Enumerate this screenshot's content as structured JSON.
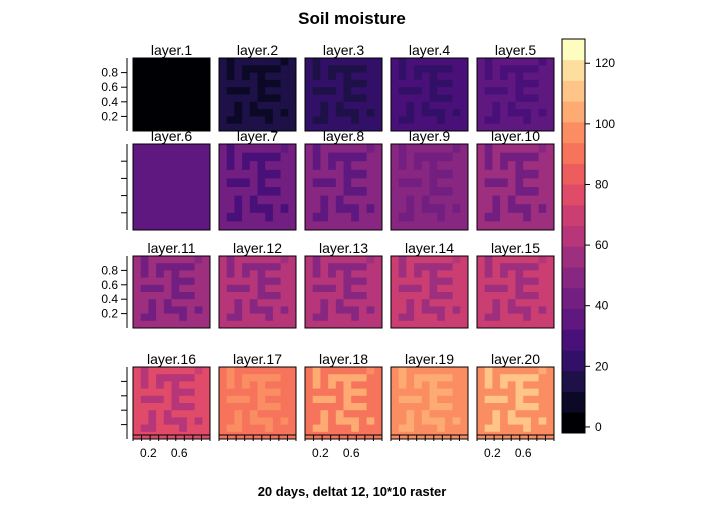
{
  "chart_data": {
    "type": "heatmap",
    "title": "Soil moisture",
    "xlabel": "20 days, deltat 12, 10*10 raster",
    "ylabel": "",
    "grid": false,
    "layout": {
      "rows": 4,
      "cols": 5
    },
    "raster_size": [
      10,
      10
    ],
    "panel_titles": [
      "layer.1",
      "layer.2",
      "layer.3",
      "layer.4",
      "layer.5",
      "layer.6",
      "layer.7",
      "layer.8",
      "layer.9",
      "layer.10",
      "layer.11",
      "layer.12",
      "layer.13",
      "layer.14",
      "layer.15",
      "layer.16",
      "layer.17",
      "layer.18",
      "layer.19",
      "layer.20"
    ],
    "x_tick_labels": [
      "0.2",
      "0.6"
    ],
    "y_tick_labels": [
      "0.2",
      "0.4",
      "0.6",
      "0.8"
    ],
    "colorbar": {
      "min": -2,
      "max": 128,
      "step": 8,
      "tick_labels": [
        "0",
        "20",
        "40",
        "60",
        "80",
        "100",
        "120"
      ],
      "colors": [
        "#000004",
        "#0b0926",
        "#1d1147",
        "#331067",
        "#4a1079",
        "#5f187f",
        "#721f81",
        "#882781",
        "#9e2f7f",
        "#b63679",
        "#cb3e72",
        "#e04b6a",
        "#ee5d5d",
        "#f7745c",
        "#fb8d63",
        "#fdaa73",
        "#fec488",
        "#fede9e",
        "#fcfdbf"
      ]
    },
    "layer_means": [
      0,
      17,
      24,
      31,
      38,
      44,
      49,
      55,
      58,
      62,
      65,
      70,
      75,
      80,
      85,
      92,
      103,
      108,
      112,
      116
    ],
    "pattern": [
      [
        0,
        2,
        0,
        0,
        0,
        0,
        0,
        0,
        1,
        0
      ],
      [
        0,
        2,
        0,
        2,
        2,
        2,
        2,
        2,
        0,
        0
      ],
      [
        0,
        2,
        0,
        2,
        0,
        2,
        0,
        0,
        0,
        0
      ],
      [
        0,
        0,
        0,
        0,
        0,
        2,
        2,
        2,
        0,
        0
      ],
      [
        0,
        2,
        2,
        2,
        0,
        2,
        0,
        0,
        0,
        0
      ],
      [
        0,
        0,
        0,
        0,
        0,
        2,
        2,
        2,
        0,
        0
      ],
      [
        0,
        0,
        2,
        0,
        2,
        0,
        0,
        0,
        0,
        0
      ],
      [
        0,
        0,
        2,
        0,
        2,
        2,
        2,
        0,
        2,
        0
      ],
      [
        0,
        2,
        2,
        0,
        0,
        0,
        2,
        0,
        0,
        0
      ],
      [
        0,
        0,
        0,
        0,
        0,
        0,
        0,
        0,
        0,
        0
      ]
    ],
    "pattern_delta": [
      0,
      -4,
      -2,
      -1,
      -1,
      -1,
      -6,
      -8,
      -6,
      -6,
      -6,
      -8,
      -8,
      -8,
      -8,
      -10,
      6,
      6,
      5,
      5
    ]
  }
}
